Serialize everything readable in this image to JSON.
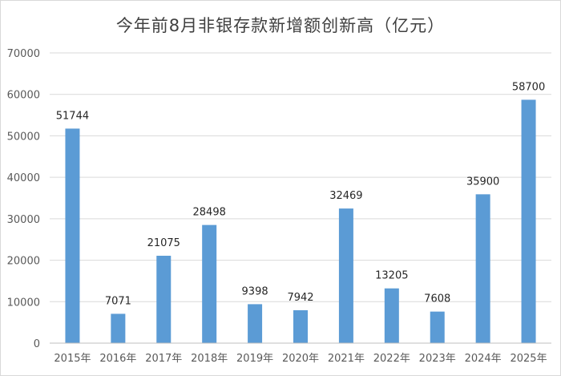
{
  "chart_data": {
    "type": "bar",
    "title": "今年前8月非银存款新增额创新高（亿元）",
    "categories": [
      "2015年",
      "2016年",
      "2017年",
      "2018年",
      "2019年",
      "2020年",
      "2021年",
      "2022年",
      "2023年",
      "2024年",
      "2025年"
    ],
    "values": [
      51744,
      7071,
      21075,
      28498,
      9398,
      7942,
      32469,
      13205,
      7608,
      35900,
      58700
    ],
    "data_labels": [
      "51744",
      "7071",
      "21075",
      "28498",
      "9398",
      "7942",
      "32469",
      "13205",
      "7608",
      "35900",
      "58700"
    ],
    "ylim": [
      0,
      70000
    ],
    "yticks": [
      "0",
      "10000",
      "20000",
      "30000",
      "40000",
      "50000",
      "60000",
      "70000"
    ],
    "grid": true,
    "legend": "none",
    "bar_color": "#5b9bd5"
  }
}
